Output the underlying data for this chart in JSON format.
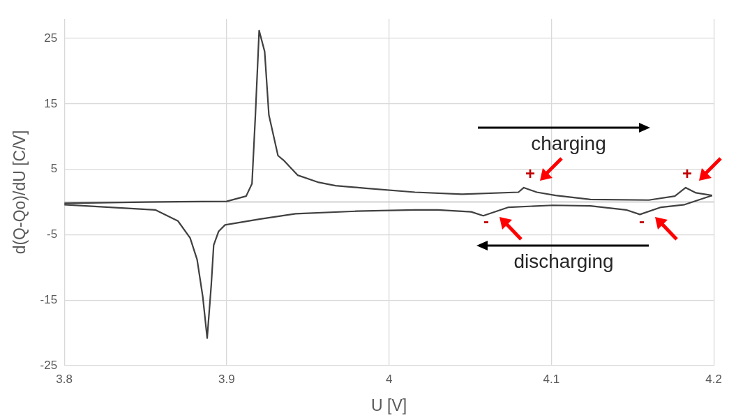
{
  "chart_data": {
    "type": "line",
    "xlabel": "U [V]",
    "ylabel": "d(Q-Qo)/dU [C/V]",
    "xlim": [
      3.8,
      4.2
    ],
    "xticks": [
      3.8,
      3.9,
      4,
      4.1,
      4.2
    ],
    "ylim": [
      -25,
      28
    ],
    "yticks": [
      -25,
      -15,
      -5,
      5,
      15,
      25
    ],
    "grid": true,
    "legend": false,
    "marker": "none",
    "line_style": "solid",
    "ref_lines": [
      {
        "axis": "y",
        "value": 0,
        "color": "#bfbfbf"
      }
    ],
    "series": [
      {
        "color": "#404040",
        "x": [
          3.8,
          3.85,
          3.9,
          3.912,
          3.9156,
          3.9177,
          3.92,
          3.9234,
          3.926,
          3.9316,
          3.935,
          3.9437,
          3.9567,
          3.967,
          3.9857,
          4.016,
          4.045,
          4.0797,
          4.083,
          4.091,
          4.1026,
          4.124,
          4.16,
          4.176,
          4.1827,
          4.189,
          4.199
        ],
        "values": [
          -0.2,
          0,
          0.1,
          0.9,
          2.8,
          13.3,
          26.2,
          23,
          13.3,
          7.1,
          6.4,
          4.1,
          3.0,
          2.5,
          2.1,
          1.5,
          1.2,
          1.5,
          2.2,
          1.5,
          1.0,
          0.4,
          0.3,
          0.9,
          2.2,
          1.4,
          1.0
        ]
      },
      {
        "color": "#404040",
        "x": [
          3.8,
          3.856,
          3.87,
          3.8775,
          3.8818,
          3.8853,
          3.888,
          3.8905,
          3.892,
          3.895,
          3.899,
          3.9208,
          3.9424,
          3.98,
          4.016,
          4.03,
          4.0506,
          4.058,
          4.0736,
          4.101,
          4.124,
          4.146,
          4.1545,
          4.1675,
          4.182,
          4.199
        ],
        "values": [
          -0.4,
          -1.2,
          -2.9,
          -5.5,
          -8.8,
          -14.5,
          -20.8,
          -12.7,
          -6.6,
          -4.5,
          -3.5,
          -2.6,
          -1.8,
          -1.4,
          -1.2,
          -1.2,
          -1.5,
          -2.1,
          -0.8,
          -0.5,
          -0.6,
          -1.2,
          -1.9,
          -0.8,
          -0.4,
          1.0
        ]
      }
    ],
    "annotations": [
      "charging",
      "discharging",
      "+",
      "+",
      "-",
      "-"
    ]
  }
}
